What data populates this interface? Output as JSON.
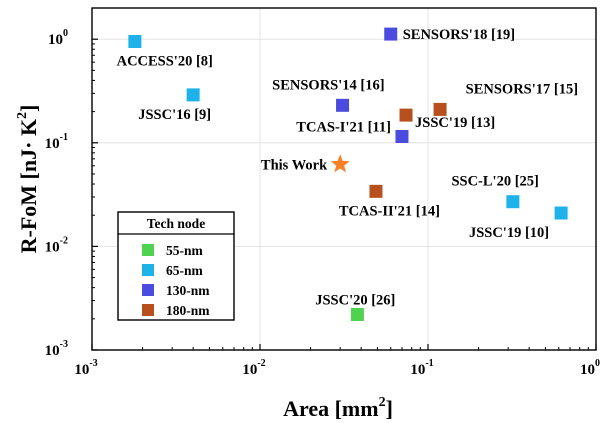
{
  "chart_data": {
    "type": "scatter",
    "xscale": "log",
    "yscale": "log",
    "xlim": [
      0.001,
      1
    ],
    "ylim": [
      0.001,
      2
    ],
    "grid": true,
    "x_ticks": [
      {
        "value": 0.001,
        "base": "10",
        "exp": "-3"
      },
      {
        "value": 0.01,
        "base": "10",
        "exp": "-2"
      },
      {
        "value": 0.1,
        "base": "10",
        "exp": "-1"
      },
      {
        "value": 1,
        "base": "10",
        "exp": "0"
      }
    ],
    "y_ticks": [
      {
        "value": 0.001,
        "base": "10",
        "exp": "-3"
      },
      {
        "value": 0.01,
        "base": "10",
        "exp": "-2"
      },
      {
        "value": 0.1,
        "base": "10",
        "exp": "-1"
      },
      {
        "value": 1,
        "base": "10",
        "exp": "0"
      }
    ],
    "xlabel": {
      "text": "Area [mm",
      "exp": "2",
      "suffix": "]"
    },
    "ylabel": {
      "text": "R-FoM [nJ· K",
      "exp": "2",
      "suffix": "]"
    },
    "legend": {
      "title": "Tech node",
      "position": "bottom-left",
      "entries": [
        {
          "node": "55-nm",
          "label": "55-nm",
          "color": "#4fd24f"
        },
        {
          "node": "65-nm",
          "label": "65-nm",
          "color": "#1eb3e8"
        },
        {
          "node": "130-nm",
          "label": "130-nm",
          "color": "#4b4bdf"
        },
        {
          "node": "180-nm",
          "label": "180-nm",
          "color": "#b8501e"
        }
      ]
    },
    "star_color": "#ff7f27",
    "points": [
      {
        "label": "ACCESS'20 [8]",
        "x": 0.0018,
        "y": 0.95,
        "node": "65-nm",
        "marker": "square",
        "anchor": "end",
        "ldx": 78,
        "ldy": 24
      },
      {
        "label": "JSSC'16 [9]",
        "x": 0.004,
        "y": 0.29,
        "node": "65-nm",
        "marker": "square",
        "anchor": "end",
        "ldx": 18,
        "ldy": 24
      },
      {
        "label": "SENSORS'18 [19]",
        "x": 0.06,
        "y": 1.12,
        "node": "130-nm",
        "marker": "square",
        "anchor": "start",
        "ldx": 12,
        "ldy": 5
      },
      {
        "label": "SENSORS'14 [16]",
        "x": 0.031,
        "y": 0.23,
        "node": "130-nm",
        "marker": "square",
        "anchor": "end",
        "ldx": 42,
        "ldy": -16
      },
      {
        "label": "SENSORS'17 [15]",
        "x": 0.118,
        "y": 0.21,
        "node": "180-nm",
        "marker": "square",
        "anchor": "end",
        "ldx": 138,
        "ldy": -16
      },
      {
        "label": "JSSC'19 [13]",
        "x": 0.074,
        "y": 0.185,
        "node": "180-nm",
        "marker": "square",
        "anchor": "start",
        "ldx": 9,
        "ldy": 12
      },
      {
        "label": "TCAS-I'21 [11]",
        "x": 0.07,
        "y": 0.115,
        "node": "130-nm",
        "marker": "square",
        "anchor": "end",
        "ldx": -11,
        "ldy": -5
      },
      {
        "label": "This Work",
        "x": 0.03,
        "y": 0.062,
        "node": "",
        "marker": "star",
        "anchor": "end",
        "ldx": -13,
        "ldy": 5
      },
      {
        "label": "TCAS-II'21 [14]",
        "x": 0.049,
        "y": 0.034,
        "node": "180-nm",
        "marker": "square",
        "anchor": "end",
        "ldx": 64,
        "ldy": 24
      },
      {
        "label": "SSC-L'20 [25]",
        "x": 0.32,
        "y": 0.027,
        "node": "65-nm",
        "marker": "square",
        "anchor": "end",
        "ldx": 26,
        "ldy": -16
      },
      {
        "label": "JSSC'19 [10]",
        "x": 0.62,
        "y": 0.021,
        "node": "65-nm",
        "marker": "square",
        "anchor": "end",
        "ldx": -12,
        "ldy": 24
      },
      {
        "label": "JSSC'20 [26]",
        "x": 0.038,
        "y": 0.0022,
        "node": "55-nm",
        "marker": "square",
        "anchor": "end",
        "ldx": 38,
        "ldy": -10
      }
    ]
  }
}
